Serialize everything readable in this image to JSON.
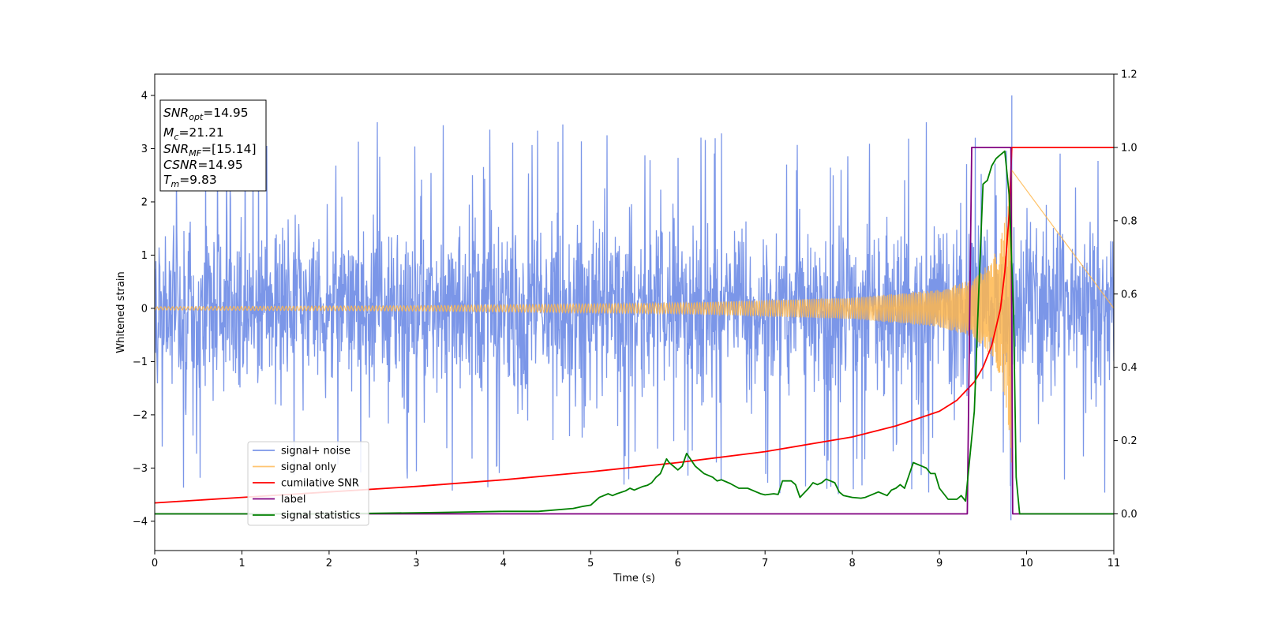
{
  "chart_data": {
    "type": "line",
    "xlabel": "Time (s)",
    "ylabel": "Whitened strain",
    "xlim": [
      0,
      11
    ],
    "ylim_left": [
      -4.55,
      4.4
    ],
    "ylim_right": [
      -0.1,
      1.2
    ],
    "x_ticks": [
      "0",
      "1",
      "2",
      "3",
      "4",
      "5",
      "6",
      "7",
      "8",
      "9",
      "10",
      "11"
    ],
    "y_ticks_left": [
      "−4",
      "−3",
      "−2",
      "−1",
      "0",
      "1",
      "2",
      "3",
      "4"
    ],
    "y_ticks_right": [
      "0.0",
      "0.2",
      "0.4",
      "0.6",
      "0.8",
      "1.0",
      "1.2"
    ],
    "legend_placement": "lower-left",
    "colors": {
      "signal_noise": "#7b96e8",
      "signal_only": "#ffb74d",
      "cumulative_snr": "#ff0000",
      "label": "#800080",
      "signal_statistics": "#008000"
    },
    "series": [
      {
        "name": "signal+ noise",
        "axis": "left",
        "description_values": "noise band, typical envelope ±2.0, peaks up to ±3.5",
        "peak": [
          9.83,
          4.0
        ],
        "trough": [
          9.82,
          -3.98
        ]
      },
      {
        "name": "signal only",
        "axis": "left",
        "amplitude_points": [
          [
            0,
            0.03
          ],
          [
            3,
            0.05
          ],
          [
            6,
            0.1
          ],
          [
            8,
            0.2
          ],
          [
            9,
            0.35
          ],
          [
            9.4,
            0.55
          ],
          [
            9.6,
            0.9
          ],
          [
            9.7,
            1.3
          ],
          [
            9.78,
            2.0
          ],
          [
            9.83,
            3.0
          ]
        ],
        "merge_time": 9.83
      },
      {
        "name": "cumilative SNR",
        "axis": "right",
        "x": [
          0,
          1,
          2,
          3,
          4,
          5,
          6,
          7,
          8,
          8.5,
          9,
          9.2,
          9.4,
          9.5,
          9.6,
          9.7,
          9.75,
          9.8,
          9.83,
          11
        ],
        "y": [
          0.03,
          0.045,
          0.06,
          0.075,
          0.093,
          0.115,
          0.14,
          0.17,
          0.21,
          0.24,
          0.28,
          0.31,
          0.36,
          0.4,
          0.46,
          0.56,
          0.66,
          0.82,
          1.0,
          1.0
        ]
      },
      {
        "name": "label",
        "axis": "right",
        "x": [
          0,
          9.32,
          9.37,
          9.82,
          9.84,
          11
        ],
        "y": [
          0,
          0,
          1,
          1,
          0,
          0
        ]
      },
      {
        "name": "signal statistics",
        "axis": "right",
        "x": [
          0,
          1,
          2,
          3,
          3.3,
          4,
          4.4,
          4.8,
          4.9,
          5.0,
          5.1,
          5.2,
          5.25,
          5.3,
          5.4,
          5.45,
          5.5,
          5.6,
          5.65,
          5.7,
          5.75,
          5.8,
          5.87,
          5.9,
          5.95,
          6.0,
          6.05,
          6.1,
          6.2,
          6.3,
          6.4,
          6.45,
          6.5,
          6.6,
          6.7,
          6.8,
          6.9,
          6.95,
          7.0,
          7.1,
          7.15,
          7.2,
          7.3,
          7.35,
          7.4,
          7.5,
          7.55,
          7.6,
          7.65,
          7.7,
          7.8,
          7.85,
          7.9,
          8.0,
          8.1,
          8.15,
          8.2,
          8.3,
          8.4,
          8.45,
          8.5,
          8.55,
          8.6,
          8.7,
          8.8,
          8.85,
          8.9,
          8.95,
          9.0,
          9.1,
          9.2,
          9.25,
          9.3,
          9.4,
          9.45,
          9.5,
          9.55,
          9.6,
          9.65,
          9.7,
          9.75,
          9.8,
          9.85,
          9.88,
          9.92,
          11
        ],
        "y": [
          0,
          0,
          0,
          0.003,
          0.004,
          0.007,
          0.007,
          0.015,
          0.02,
          0.024,
          0.045,
          0.055,
          0.05,
          0.055,
          0.063,
          0.07,
          0.065,
          0.075,
          0.078,
          0.085,
          0.1,
          0.11,
          0.15,
          0.14,
          0.13,
          0.12,
          0.13,
          0.165,
          0.13,
          0.11,
          0.1,
          0.09,
          0.093,
          0.083,
          0.07,
          0.07,
          0.06,
          0.055,
          0.052,
          0.055,
          0.053,
          0.09,
          0.09,
          0.08,
          0.045,
          0.07,
          0.085,
          0.08,
          0.085,
          0.095,
          0.085,
          0.06,
          0.05,
          0.045,
          0.043,
          0.045,
          0.05,
          0.06,
          0.05,
          0.065,
          0.07,
          0.08,
          0.07,
          0.14,
          0.13,
          0.125,
          0.11,
          0.11,
          0.07,
          0.04,
          0.04,
          0.05,
          0.035,
          0.28,
          0.6,
          0.9,
          0.91,
          0.95,
          0.97,
          0.98,
          0.99,
          0.87,
          0.55,
          0.1,
          0,
          0
        ]
      }
    ]
  },
  "info_box": {
    "snr_opt_label": "SNR",
    "snr_opt_sub": "opt",
    "snr_opt_value": "=14.95",
    "mc_label": "M",
    "mc_sub": "c",
    "mc_value": "=21.21",
    "snr_mf_label": "SNR",
    "snr_mf_sub": "MF",
    "snr_mf_value": "=[15.14]",
    "csnr_label": "CSNR",
    "csnr_value": "=14.95",
    "tm_label": "T",
    "tm_sub": "m",
    "tm_value": "=9.83"
  },
  "legend": {
    "items": [
      "signal+ noise",
      "signal only",
      "cumilative SNR",
      "label",
      "signal statistics"
    ]
  }
}
